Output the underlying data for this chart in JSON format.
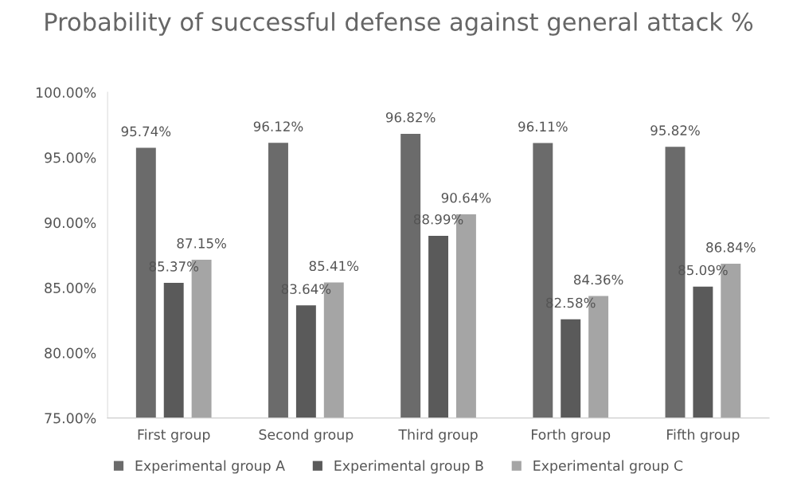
{
  "chart_data": {
    "type": "bar",
    "title": "Probability of successful defense against general attack %",
    "categories": [
      "First group",
      "Second group",
      "Third group",
      "Forth group",
      "Fifth group"
    ],
    "series": [
      {
        "name": "Experimental group A",
        "color": "#6b6b6b",
        "values": [
          95.74,
          96.12,
          96.82,
          96.11,
          95.82
        ],
        "value_labels": [
          "95.74%",
          "96.12%",
          "96.82%",
          "96.11%",
          "95.82%"
        ]
      },
      {
        "name": "Experimental group B",
        "color": "#5a5a5a",
        "values": [
          85.37,
          83.64,
          88.99,
          82.58,
          85.09
        ],
        "value_labels": [
          "85.37%",
          "83.64%",
          "88.99%",
          "82.58%",
          "85.09%"
        ]
      },
      {
        "name": "Experimental group C",
        "color": "#a5a5a5",
        "values": [
          87.15,
          85.41,
          90.64,
          84.36,
          86.84
        ],
        "value_labels": [
          "87.15%",
          "85.41%",
          "90.64%",
          "84.36%",
          "86.84%"
        ]
      }
    ],
    "ylim": [
      75,
      100
    ],
    "yticks": [
      {
        "value": 75,
        "label": "75.00%"
      },
      {
        "value": 80,
        "label": "80.00%"
      },
      {
        "value": 85,
        "label": "85.00%"
      },
      {
        "value": 90,
        "label": "90.00%"
      },
      {
        "value": 95,
        "label": "95.00%"
      },
      {
        "value": 100,
        "label": "100.00%"
      }
    ],
    "grid": false,
    "legend": "bottom"
  }
}
